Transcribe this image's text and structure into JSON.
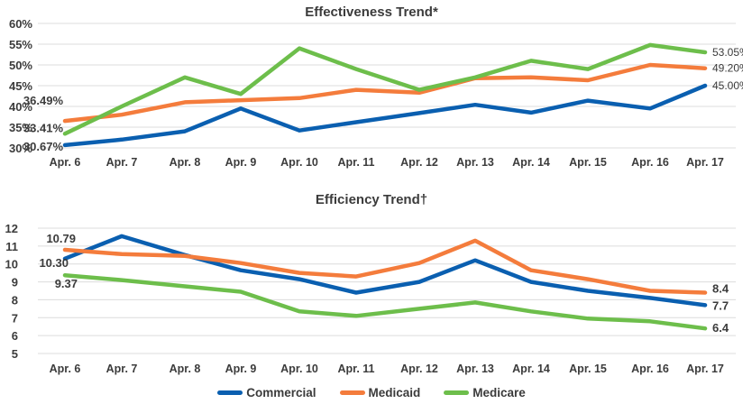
{
  "chart_data": [
    {
      "type": "line",
      "title": "Effectiveness Trend*",
      "xlabel": "",
      "ylabel": "",
      "categories": [
        "Apr. 6",
        "Apr. 7",
        "Apr. 8",
        "Apr. 9",
        "Apr. 10",
        "Apr. 11",
        "Apr. 12",
        "Apr. 13",
        "Apr. 14",
        "Apr. 15",
        "Apr. 16",
        "Apr. 17"
      ],
      "ylim": [
        30,
        60
      ],
      "yticks": [
        30,
        35,
        40,
        45,
        50,
        55,
        60
      ],
      "ytick_labels": [
        "30%",
        "35%",
        "40%",
        "45%",
        "50%",
        "55%",
        "60%"
      ],
      "grid": true,
      "series": [
        {
          "name": "Commercial",
          "color": "#0A5FB0",
          "values": [
            30.67,
            32.0,
            34.0,
            39.5,
            34.2,
            36.2,
            38.4,
            40.4,
            38.5,
            41.4,
            39.5,
            45.0
          ],
          "labels": [
            {
              "index": 0,
              "text": "30.67%"
            },
            {
              "index": 11,
              "text": "45.00%"
            }
          ]
        },
        {
          "name": "Medicaid",
          "color": "#F47C3C",
          "values": [
            36.49,
            38.0,
            41.0,
            41.5,
            42.0,
            44.0,
            43.3,
            46.8,
            47.0,
            46.3,
            50.0,
            49.2
          ],
          "labels": [
            {
              "index": 0,
              "text": "36.49%"
            },
            {
              "index": 11,
              "text": "49.20%"
            }
          ]
        },
        {
          "name": "Medicare",
          "color": "#6DBE4B",
          "values": [
            33.41,
            40.0,
            47.0,
            43.0,
            54.0,
            49.0,
            44.0,
            47.0,
            51.0,
            49.0,
            54.8,
            53.05
          ],
          "labels": [
            {
              "index": 0,
              "text": "33.41%"
            },
            {
              "index": 11,
              "text": "53.05%"
            }
          ]
        }
      ]
    },
    {
      "type": "line",
      "title": "Efficiency Trend†",
      "xlabel": "",
      "ylabel": "",
      "categories": [
        "Apr. 6",
        "Apr. 7",
        "Apr. 8",
        "Apr. 9",
        "Apr. 10",
        "Apr. 11",
        "Apr. 12",
        "Apr. 13",
        "Apr. 14",
        "Apr. 15",
        "Apr. 16",
        "Apr. 17"
      ],
      "ylim": [
        5,
        12
      ],
      "yticks": [
        5,
        6,
        7,
        8,
        9,
        10,
        11,
        12
      ],
      "ytick_labels": [
        "5",
        "6",
        "7",
        "8",
        "9",
        "10",
        "11",
        "12"
      ],
      "grid": true,
      "series": [
        {
          "name": "Commercial",
          "color": "#0A5FB0",
          "values": [
            10.3,
            11.55,
            10.5,
            9.65,
            9.15,
            8.4,
            9.0,
            10.2,
            9.0,
            8.5,
            8.1,
            7.7
          ],
          "labels": [
            {
              "index": 0,
              "text": "10.30"
            },
            {
              "index": 11,
              "text": "7.7"
            }
          ]
        },
        {
          "name": "Medicaid",
          "color": "#F47C3C",
          "values": [
            10.79,
            10.55,
            10.45,
            10.05,
            9.5,
            9.3,
            10.05,
            11.3,
            9.65,
            9.15,
            8.5,
            8.4
          ],
          "labels": [
            {
              "index": 0,
              "text": "10.79"
            },
            {
              "index": 11,
              "text": "8.4"
            }
          ]
        },
        {
          "name": "Medicare",
          "color": "#6DBE4B",
          "values": [
            9.37,
            9.1,
            8.75,
            8.45,
            7.35,
            7.1,
            7.5,
            7.85,
            7.35,
            6.95,
            6.8,
            6.4
          ],
          "labels": [
            {
              "index": 0,
              "text": "9.37"
            },
            {
              "index": 11,
              "text": "6.4"
            }
          ]
        }
      ]
    }
  ],
  "legend": {
    "position": "bottom-center",
    "items": [
      {
        "name": "Commercial",
        "color": "#0A5FB0"
      },
      {
        "name": "Medicaid",
        "color": "#F47C3C"
      },
      {
        "name": "Medicare",
        "color": "#6DBE4B"
      }
    ]
  }
}
